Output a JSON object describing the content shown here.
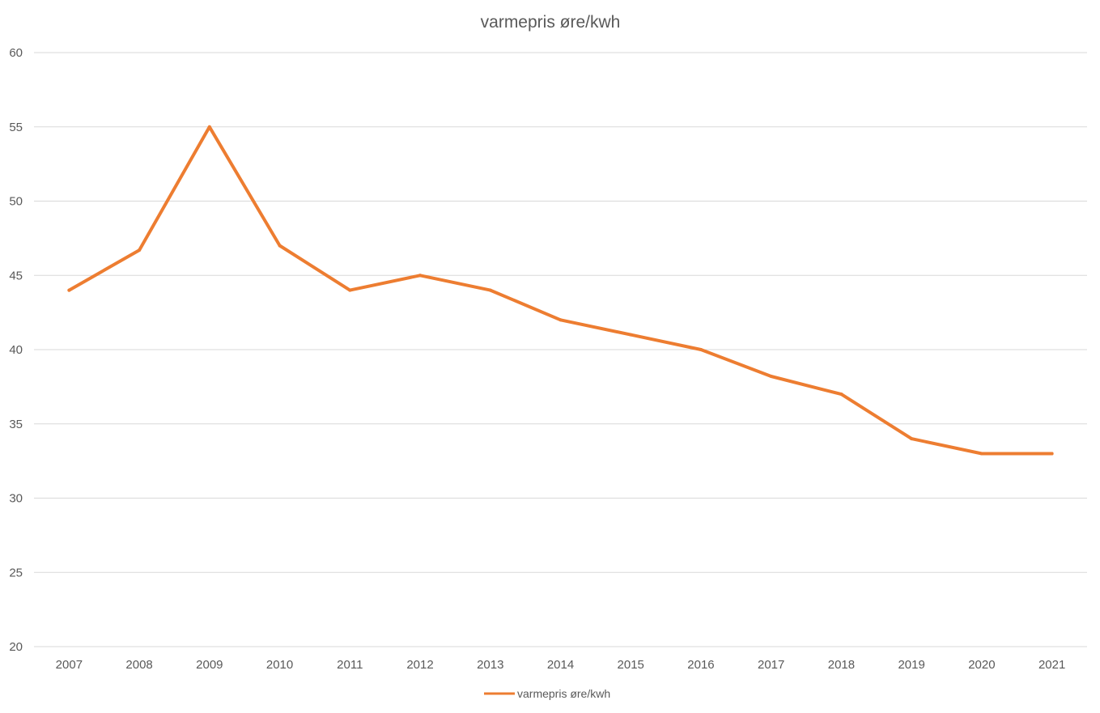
{
  "chart_data": {
    "type": "line",
    "title": "varmepris øre/kwh",
    "xlabel": "",
    "ylabel": "",
    "categories": [
      "2007",
      "2008",
      "2009",
      "2010",
      "2011",
      "2012",
      "2013",
      "2014",
      "2015",
      "2016",
      "2017",
      "2018",
      "2019",
      "2020",
      "2021"
    ],
    "series": [
      {
        "name": "varmepris øre/kwh",
        "color": "#ed7d31",
        "values": [
          44,
          46.7,
          55,
          47,
          44,
          45,
          44,
          42,
          41,
          40,
          38.2,
          37,
          34,
          33,
          33
        ]
      }
    ],
    "ylim": [
      20,
      60
    ],
    "yticks": [
      20,
      25,
      30,
      35,
      40,
      45,
      50,
      55,
      60
    ],
    "grid": true,
    "legend": "bottom",
    "colors": {
      "text": "#595959",
      "grid": "#d9d9d9"
    }
  }
}
